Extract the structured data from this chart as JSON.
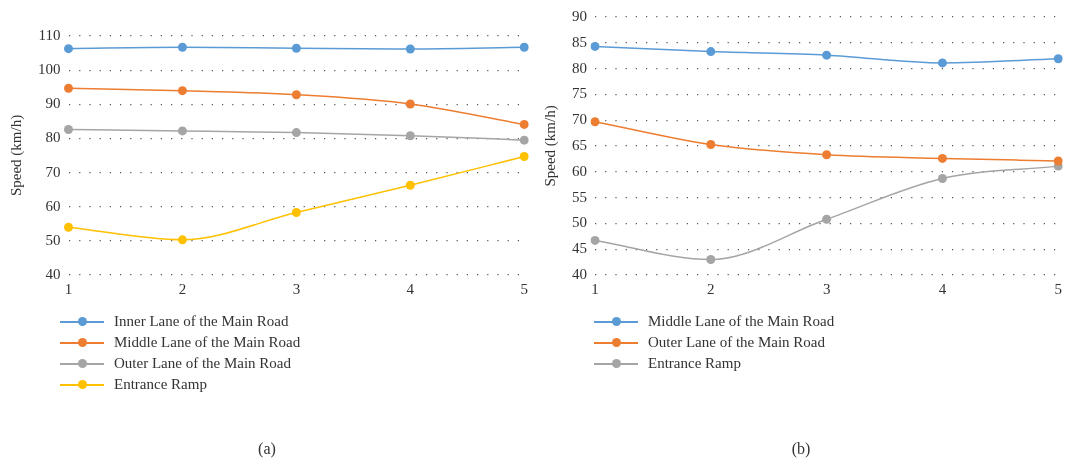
{
  "chart_data": [
    {
      "type": "line",
      "ylabel": "Speed (km/h)",
      "categories": [
        "1",
        "2",
        "3",
        "4",
        "5"
      ],
      "ylim": [
        40,
        110
      ],
      "yticks": [
        40,
        50,
        60,
        70,
        80,
        90,
        100,
        110
      ],
      "grid": "y",
      "legend": "bottom left",
      "marker": "circle",
      "annotations": [
        "(a)"
      ],
      "series": [
        {
          "name": "Inner Lane of the Main Road",
          "color": "#5b9bd5",
          "values": [
            106.3,
            106.7,
            106.4,
            106.2,
            106.7
          ]
        },
        {
          "name": "Middle Lane of the Main Road",
          "color": "#ed7d31",
          "values": [
            94.7,
            94.0,
            92.8,
            90.1,
            84.1
          ]
        },
        {
          "name": "Outer Lane of the Main Road",
          "color": "#a5a5a5",
          "values": [
            82.6,
            82.2,
            81.7,
            80.8,
            79.5
          ]
        },
        {
          "name": "Entrance Ramp",
          "color": "#ffc000",
          "values": [
            54.0,
            50.3,
            58.3,
            66.3,
            74.7
          ]
        }
      ]
    },
    {
      "type": "line",
      "ylabel": "Speed (km/h)",
      "categories": [
        "1",
        "2",
        "3",
        "4",
        "5"
      ],
      "ylim": [
        40,
        90
      ],
      "yticks": [
        40,
        45,
        50,
        55,
        60,
        65,
        70,
        75,
        80,
        85,
        90
      ],
      "grid": "y",
      "legend": "bottom left",
      "marker": "circle",
      "annotations": [
        "(b)"
      ],
      "series": [
        {
          "name": "Middle Lane of the Main Road",
          "color": "#5b9bd5",
          "values": [
            84.3,
            83.3,
            82.6,
            81.1,
            81.9
          ]
        },
        {
          "name": "Outer Lane of the Main Road",
          "color": "#ed7d31",
          "values": [
            69.7,
            65.3,
            63.3,
            62.6,
            62.1
          ]
        },
        {
          "name": "Entrance Ramp",
          "color": "#a5a5a5",
          "values": [
            46.7,
            43.0,
            50.8,
            58.7,
            61.1
          ]
        }
      ]
    }
  ]
}
